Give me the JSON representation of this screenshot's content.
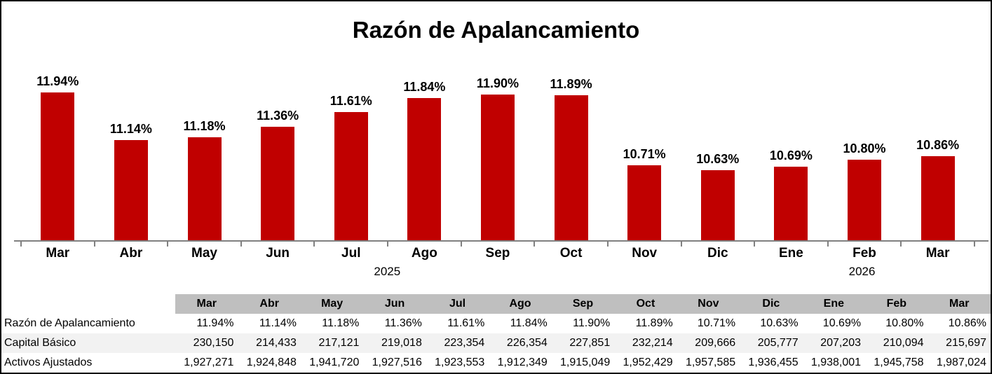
{
  "title": "Razón de Apalancamiento",
  "colors": {
    "bar": "#C00000",
    "table_header_bg": "#BFBFBF",
    "table_alt_row_bg": "#F2F2F2",
    "axis_line": "#808080",
    "text": "#000000"
  },
  "chart_data": {
    "type": "bar",
    "title": "Razón de Apalancamiento",
    "categories": [
      "Mar",
      "Abr",
      "May",
      "Jun",
      "Jul",
      "Ago",
      "Sep",
      "Oct",
      "Nov",
      "Dic",
      "Ene",
      "Feb",
      "Mar"
    ],
    "values": [
      11.94,
      11.14,
      11.18,
      11.36,
      11.61,
      11.84,
      11.9,
      11.89,
      10.71,
      10.63,
      10.69,
      10.8,
      10.86
    ],
    "value_labels": [
      "11.94%",
      "11.14%",
      "11.18%",
      "11.36%",
      "11.61%",
      "11.84%",
      "11.90%",
      "11.89%",
      "10.71%",
      "10.63%",
      "10.69%",
      "10.80%",
      "10.86%"
    ],
    "xlabel": "",
    "ylabel": "",
    "ylim": [
      9.45,
      12.35
    ],
    "grid": false,
    "legend": "none",
    "year_groups": [
      {
        "label": "2025",
        "center_x_pct": 39.0
      },
      {
        "label": "2026",
        "center_x_pct": 87.0
      }
    ]
  },
  "table": {
    "columns": [
      "Mar",
      "Abr",
      "May",
      "Jun",
      "Jul",
      "Ago",
      "Sep",
      "Oct",
      "Nov",
      "Dic",
      "Ene",
      "Feb",
      "Mar"
    ],
    "rows": [
      {
        "label": "Razón de Apalancamiento",
        "values": [
          "11.94%",
          "11.14%",
          "11.18%",
          "11.36%",
          "11.61%",
          "11.84%",
          "11.90%",
          "11.89%",
          "10.71%",
          "10.63%",
          "10.69%",
          "10.80%",
          "10.86%"
        ],
        "alt": false
      },
      {
        "label": "Capital Básico",
        "values": [
          "230,150",
          "214,433",
          "217,121",
          "219,018",
          "223,354",
          "226,354",
          "227,851",
          "232,214",
          "209,666",
          "205,777",
          "207,203",
          "210,094",
          "215,697"
        ],
        "alt": true
      },
      {
        "label": "Activos Ajustados",
        "values": [
          "1,927,271",
          "1,924,848",
          "1,941,720",
          "1,927,516",
          "1,923,553",
          "1,912,349",
          "1,915,049",
          "1,952,429",
          "1,957,585",
          "1,936,455",
          "1,938,001",
          "1,945,758",
          "1,987,024"
        ],
        "alt": false
      }
    ]
  }
}
